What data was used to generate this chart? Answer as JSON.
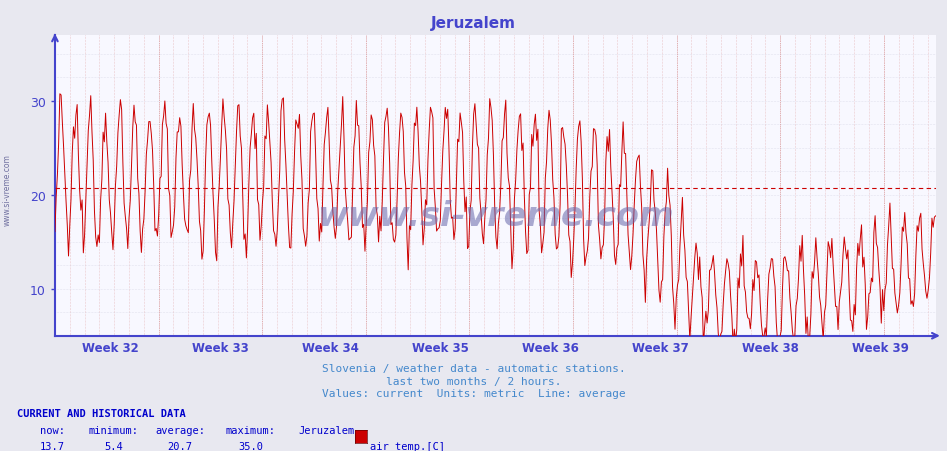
{
  "title": "Jeruzalem",
  "background_color": "#e8e8f0",
  "plot_bg_color": "#f8f8ff",
  "grid_color_dotted": "#d8a0a0",
  "grid_color_solid": "#c8c8d8",
  "line_color": "#cc0000",
  "avg_line_color": "#cc0000",
  "average_value": 20.7,
  "y_min": 5,
  "y_max": 37,
  "y_ticks": [
    10,
    20,
    30
  ],
  "x_label_weeks": [
    "Week 32",
    "Week 33",
    "Week 34",
    "Week 35",
    "Week 36",
    "Week 37",
    "Week 38",
    "Week 39"
  ],
  "n_weeks": 8.5,
  "footer_line1": "Slovenia / weather data - automatic stations.",
  "footer_line2": "last two months / 2 hours.",
  "footer_line3": "Values: current  Units: metric  Line: average",
  "stats_label": "CURRENT AND HISTORICAL DATA",
  "stat_now": "13.7",
  "stat_min": "5.4",
  "stat_avg": "20.7",
  "stat_max": "35.0",
  "stat_name": "Jeruzalem",
  "stat_var": "air temp.[C]",
  "watermark": "www.si-vreme.com",
  "axis_color": "#4444cc",
  "title_color": "#4444cc",
  "footer_color": "#4488cc",
  "stats_color": "#0000cc",
  "sidebar_text": "www.si-vreme.com"
}
